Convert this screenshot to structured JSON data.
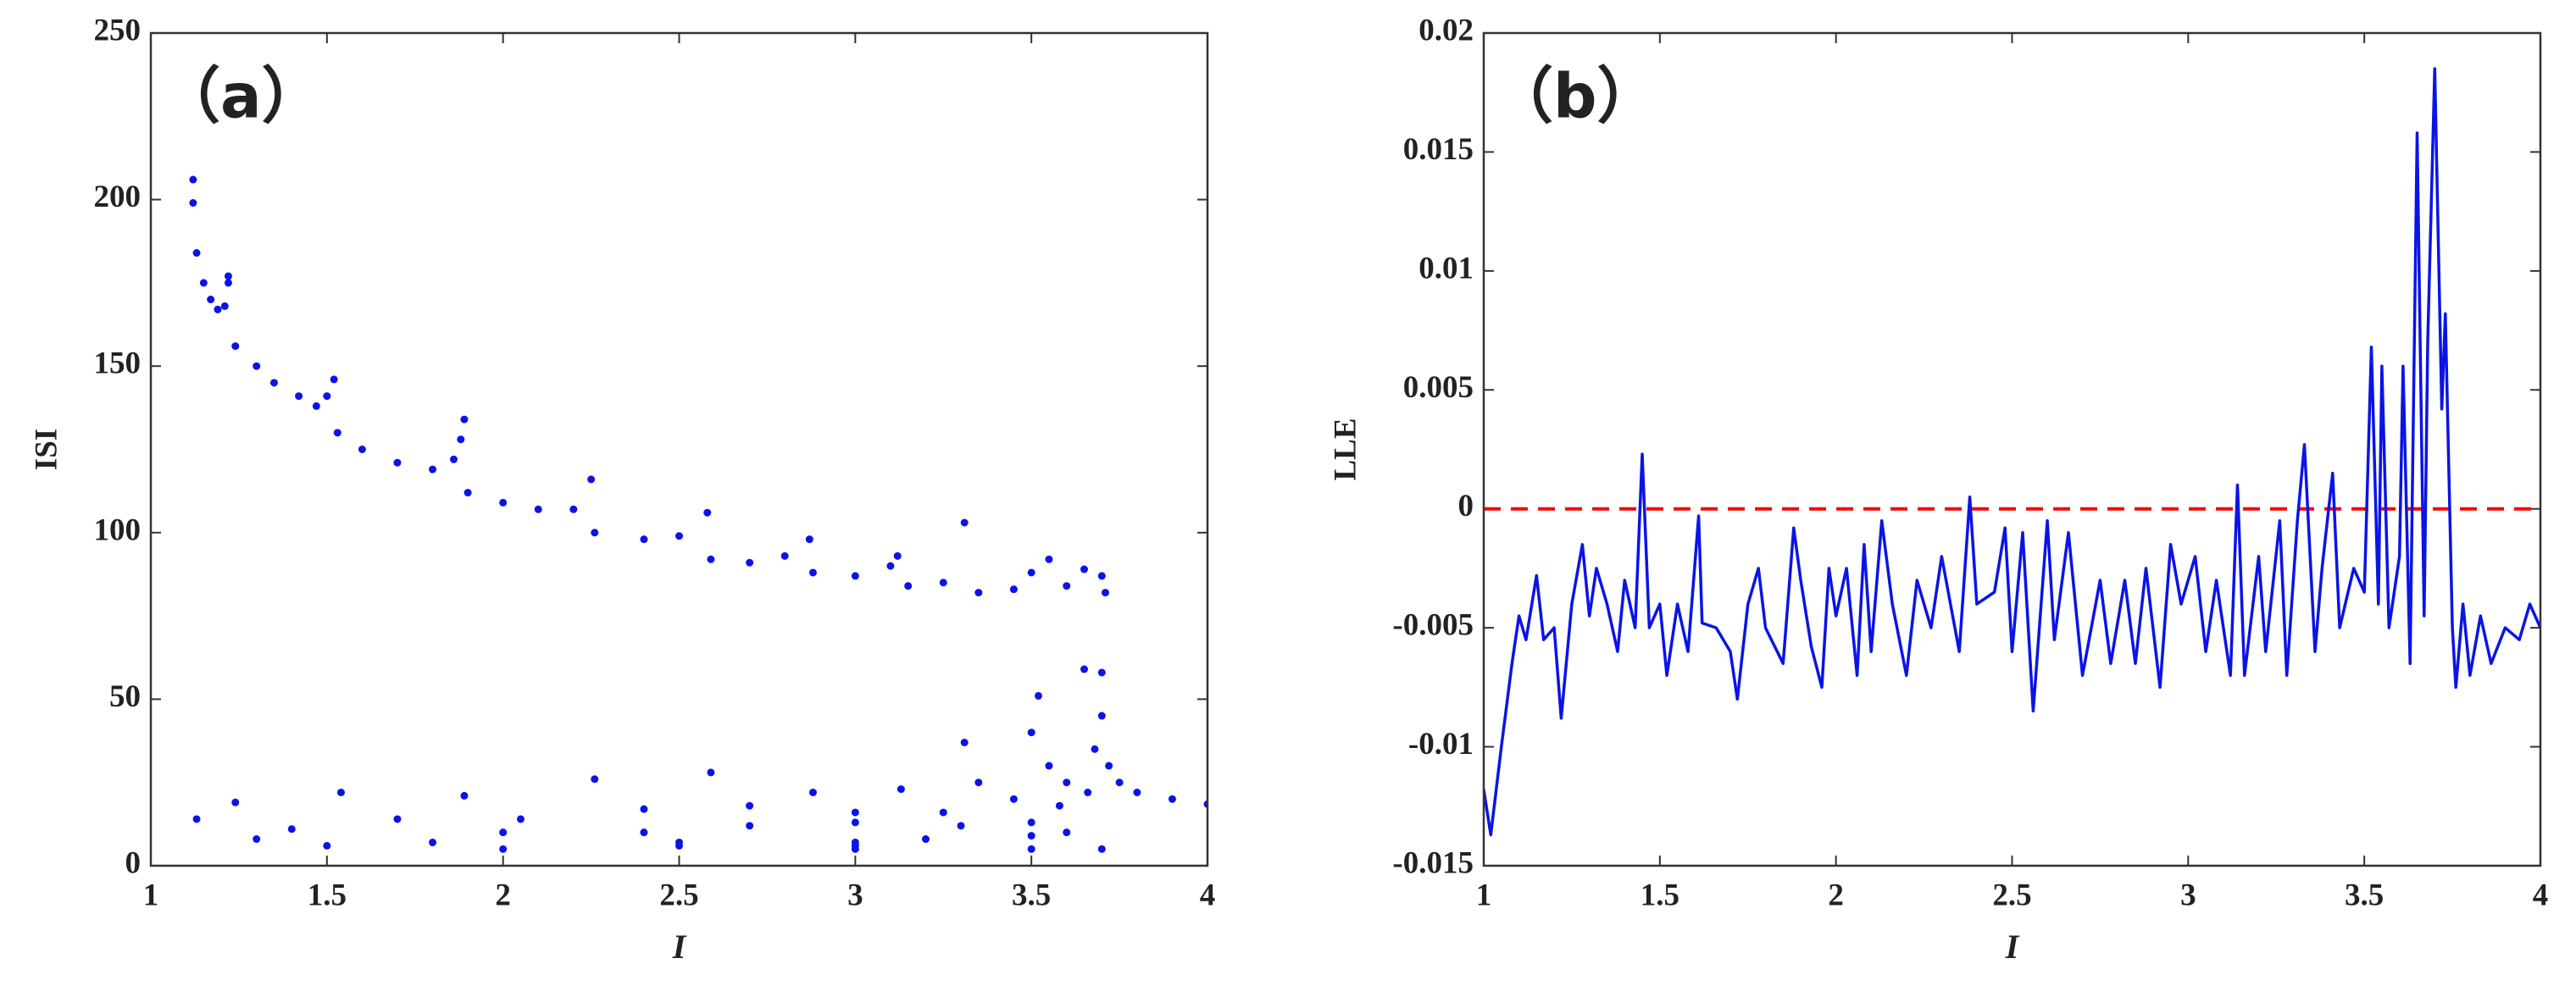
{
  "chart_data": [
    {
      "type": "scatter",
      "annotation": "（a）",
      "xlabel": "I",
      "ylabel": "ISI",
      "color": "#0a14e6",
      "xlim": [
        1,
        4
      ],
      "ylim": [
        0,
        250
      ],
      "xticks": [
        1,
        1.5,
        2,
        2.5,
        3,
        3.5,
        4
      ],
      "yticks": [
        0,
        50,
        100,
        150,
        200,
        250
      ],
      "x": [
        1.12,
        1.12,
        1.13,
        1.15,
        1.17,
        1.19,
        1.21,
        1.22,
        1.22,
        1.24,
        1.3,
        1.35,
        1.42,
        1.47,
        1.5,
        1.52,
        1.53,
        1.6,
        1.7,
        1.8,
        1.86,
        1.88,
        1.89,
        1.9,
        2.0,
        2.1,
        2.2,
        2.25,
        2.26,
        2.4,
        2.5,
        2.58,
        2.59,
        2.7,
        2.8,
        2.87,
        2.88,
        3.0,
        3.1,
        3.12,
        3.15,
        3.25,
        3.31,
        3.35,
        3.45,
        3.5,
        3.55,
        3.6,
        3.65,
        3.7,
        3.71,
        1.13,
        1.3,
        1.5,
        2.0,
        3.0,
        3.7,
        1.24,
        1.4,
        1.8,
        2.5,
        3.5,
        1.54,
        1.7,
        2.0,
        2.5,
        3.0,
        1.89,
        2.05,
        2.4,
        3.0,
        2.26,
        2.4,
        2.7,
        3.2,
        2.59,
        2.7,
        3.0,
        3.5,
        2.88,
        3.0,
        3.3,
        3.6,
        3.13,
        3.25,
        3.5,
        3.31,
        3.35,
        3.45,
        3.5,
        3.52,
        3.55,
        3.6,
        3.65,
        3.7,
        3.68,
        3.72,
        3.7,
        3.66,
        3.58,
        3.75,
        3.8,
        3.9,
        4.0
      ],
      "values": [
        206,
        199,
        184,
        175,
        170,
        167,
        168,
        177,
        175,
        156,
        150,
        145,
        141,
        138,
        141,
        146,
        130,
        125,
        121,
        119,
        122,
        128,
        134,
        112,
        109,
        107,
        107,
        116,
        100,
        98,
        99,
        106,
        92,
        91,
        93,
        98,
        88,
        87,
        90,
        93,
        84,
        85,
        103,
        82,
        83,
        88,
        92,
        84,
        89,
        87,
        82,
        14,
        8,
        6,
        5,
        5,
        5,
        19,
        11,
        7,
        6,
        5,
        22,
        14,
        10,
        7,
        6,
        21,
        14,
        10,
        7,
        26,
        17,
        12,
        8,
        28,
        18,
        13,
        9,
        22,
        16,
        12,
        10,
        23,
        16,
        13,
        37,
        25,
        20,
        40,
        51,
        30,
        25,
        59,
        58,
        35,
        30,
        45,
        22,
        18,
        25,
        22,
        20,
        18.5
      ]
    },
    {
      "type": "line",
      "annotation": "（b）",
      "xlabel": "I",
      "ylabel": "LLE",
      "color": "#0a14e6",
      "xlim": [
        1,
        4
      ],
      "ylim": [
        -0.015,
        0.02
      ],
      "xticks": [
        1,
        1.5,
        2,
        2.5,
        3,
        3.5,
        4
      ],
      "yticks": [
        -0.015,
        -0.01,
        -0.005,
        0,
        0.005,
        0.01,
        0.015,
        0.02
      ],
      "hline": {
        "y": 0,
        "color": "#ff0000",
        "style": "dashed"
      },
      "x": [
        1.0,
        1.02,
        1.05,
        1.08,
        1.1,
        1.12,
        1.15,
        1.17,
        1.2,
        1.22,
        1.25,
        1.28,
        1.3,
        1.32,
        1.35,
        1.38,
        1.4,
        1.43,
        1.45,
        1.47,
        1.5,
        1.52,
        1.55,
        1.58,
        1.61,
        1.62,
        1.66,
        1.7,
        1.72,
        1.75,
        1.78,
        1.8,
        1.85,
        1.88,
        1.9,
        1.93,
        1.96,
        1.98,
        2.0,
        2.03,
        2.06,
        2.08,
        2.1,
        2.13,
        2.16,
        2.2,
        2.23,
        2.27,
        2.3,
        2.35,
        2.38,
        2.4,
        2.45,
        2.48,
        2.5,
        2.53,
        2.56,
        2.6,
        2.62,
        2.66,
        2.7,
        2.75,
        2.78,
        2.82,
        2.85,
        2.88,
        2.92,
        2.95,
        2.98,
        3.02,
        3.05,
        3.08,
        3.12,
        3.14,
        3.16,
        3.2,
        3.22,
        3.26,
        3.28,
        3.31,
        3.33,
        3.36,
        3.38,
        3.41,
        3.43,
        3.47,
        3.5,
        3.52,
        3.54,
        3.55,
        3.57,
        3.6,
        3.61,
        3.63,
        3.65,
        3.67,
        3.68,
        3.7,
        3.72,
        3.73,
        3.75,
        3.76,
        3.78,
        3.8,
        3.83,
        3.86,
        3.9,
        3.94,
        3.97,
        4.0
      ],
      "values": [
        -0.0118,
        -0.0137,
        -0.01,
        -0.0065,
        -0.0045,
        -0.0055,
        -0.0028,
        -0.0055,
        -0.005,
        -0.0088,
        -0.004,
        -0.0015,
        -0.0045,
        -0.0025,
        -0.004,
        -0.006,
        -0.003,
        -0.005,
        0.0023,
        -0.005,
        -0.004,
        -0.007,
        -0.004,
        -0.006,
        -0.0003,
        -0.0048,
        -0.005,
        -0.006,
        -0.008,
        -0.004,
        -0.0025,
        -0.005,
        -0.0065,
        -0.0008,
        -0.003,
        -0.0058,
        -0.0075,
        -0.0025,
        -0.0045,
        -0.0025,
        -0.007,
        -0.0015,
        -0.006,
        -0.0005,
        -0.004,
        -0.007,
        -0.003,
        -0.005,
        -0.002,
        -0.006,
        0.0005,
        -0.004,
        -0.0035,
        -0.0008,
        -0.006,
        -0.001,
        -0.0085,
        -0.0005,
        -0.0055,
        -0.001,
        -0.007,
        -0.003,
        -0.0065,
        -0.003,
        -0.0065,
        -0.0025,
        -0.0075,
        -0.0015,
        -0.004,
        -0.002,
        -0.006,
        -0.003,
        -0.007,
        0.001,
        -0.007,
        -0.002,
        -0.006,
        -0.0005,
        -0.007,
        -0.0005,
        0.0027,
        -0.006,
        -0.0025,
        0.0015,
        -0.005,
        -0.0025,
        -0.0035,
        0.0068,
        -0.004,
        0.006,
        -0.005,
        -0.002,
        0.006,
        -0.0065,
        0.0158,
        -0.0045,
        0.007,
        0.0185,
        0.0042,
        0.0082,
        -0.005,
        -0.0075,
        -0.004,
        -0.007,
        -0.0045,
        -0.0065,
        -0.005,
        -0.0055,
        -0.004,
        -0.005
      ]
    }
  ]
}
